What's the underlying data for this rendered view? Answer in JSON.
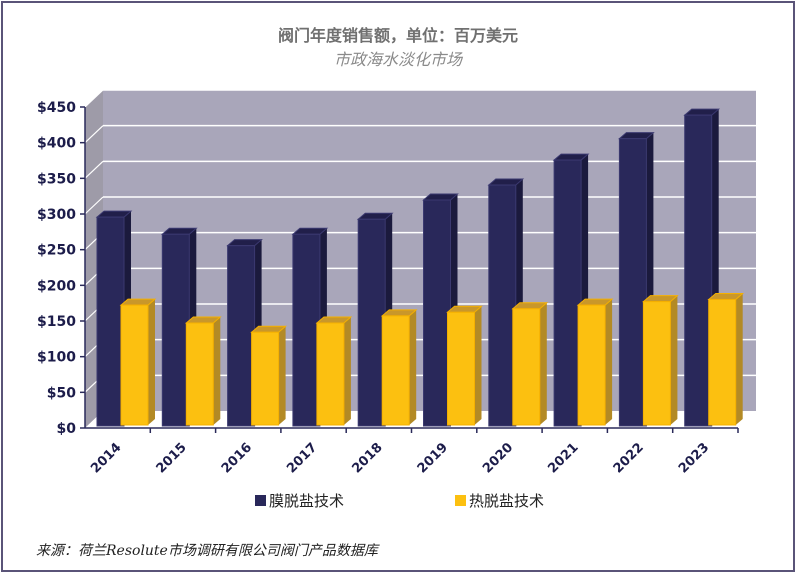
{
  "chart_data": {
    "type": "bar",
    "title": "阀门年度销售额，单位：百万美元",
    "subtitle": "市政海水淡化市场",
    "categories": [
      "2014",
      "2015",
      "2016",
      "2017",
      "2018",
      "2019",
      "2020",
      "2021",
      "2022",
      "2023"
    ],
    "series": [
      {
        "name": "膜脱盐技术",
        "color": "#29285a",
        "values": [
          290,
          266,
          250,
          266,
          287,
          314,
          335,
          370,
          400,
          433
        ]
      },
      {
        "name": "热脱盐技术",
        "color": "#fcc010",
        "values": [
          175,
          150,
          137,
          150,
          160,
          165,
          170,
          175,
          180,
          183
        ]
      }
    ],
    "ylim": [
      0,
      450
    ],
    "yticks": [
      0,
      50,
      100,
      150,
      200,
      250,
      300,
      350,
      400,
      450
    ],
    "ytick_labels": [
      "$0",
      "$50",
      "$100",
      "$150",
      "$200",
      "$250",
      "$300",
      "$350",
      "$400",
      "$450"
    ],
    "grid": true,
    "legend": "bottom",
    "style": "3d-clustered-column",
    "wall_color": "#a9a6ba"
  },
  "source": "来源：荷兰Resolute市场调研有限公司阀门产品数据库"
}
